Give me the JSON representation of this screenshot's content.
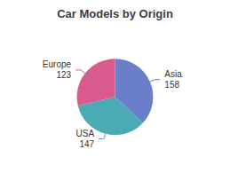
{
  "chart_data": {
    "type": "pie",
    "title": "Car Models by Origin",
    "categories": [
      "Asia",
      "USA",
      "Europe"
    ],
    "values": [
      158,
      147,
      123
    ],
    "colors": [
      "#6B7EC9",
      "#4AABB5",
      "#D95B8E"
    ],
    "data_labels": true
  }
}
